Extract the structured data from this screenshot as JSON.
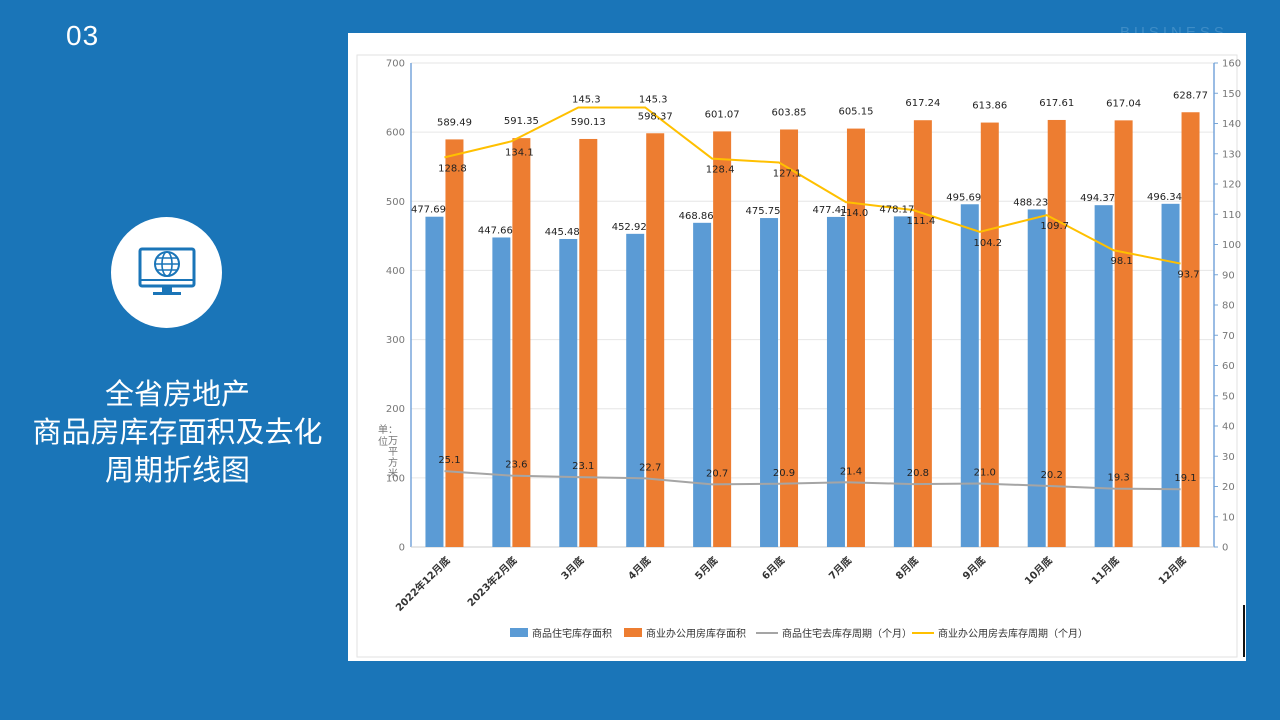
{
  "slide": {
    "number": "03",
    "watermark": "BUSINESS"
  },
  "title": {
    "line1": "全省房地产",
    "line2": "商品房库存面积及去化",
    "line3": "周期折线图"
  },
  "icon": "globe-monitor-icon",
  "colors": {
    "background": "#1a75b8",
    "residential_bar": "#5b9bd5",
    "office_bar": "#ed7d31",
    "residential_line": "#a5a5a5",
    "office_line": "#ffc000"
  },
  "chart_data": {
    "type": "bar+line",
    "categories": [
      "2022年12月底",
      "2023年2月底",
      "3月底",
      "4月底",
      "5月底",
      "6月底",
      "7月底",
      "8月底",
      "9月底",
      "10月底",
      "11月底",
      "12月底"
    ],
    "series": [
      {
        "name": "商品住宅库存面积",
        "type": "bar",
        "axis": "left",
        "values": [
          477.69,
          447.66,
          445.48,
          452.92,
          468.86,
          475.75,
          477.41,
          478.17,
          495.69,
          488.23,
          494.37,
          496.34
        ]
      },
      {
        "name": "商业办公用房库存面积",
        "type": "bar",
        "axis": "left",
        "values": [
          589.49,
          591.35,
          590.13,
          598.37,
          601.07,
          603.85,
          605.15,
          617.24,
          613.86,
          617.61,
          617.04,
          628.77
        ]
      },
      {
        "name": "商品住宅去库存周期（个月）",
        "type": "line",
        "axis": "right",
        "values": [
          25.1,
          23.6,
          23.1,
          22.7,
          20.7,
          20.9,
          21.4,
          20.8,
          21.0,
          20.2,
          19.3,
          19.1
        ]
      },
      {
        "name": "商业办公用房去库存周期（个月）",
        "type": "line",
        "axis": "right",
        "values": [
          128.8,
          134.1,
          145.3,
          145.3,
          128.4,
          127.1,
          114.0,
          111.4,
          104.2,
          109.7,
          98.1,
          93.7
        ]
      }
    ],
    "value_labels": {
      "residential_bar": [
        "477.69",
        "447.66",
        "445.48",
        "452.92",
        "468.86",
        "475.75",
        "477.41",
        "478.17",
        "495.69",
        "488.23",
        "494.37",
        "496.34"
      ],
      "office_bar": [
        "589.49",
        "591.35",
        "590.13",
        "598.37",
        "601.07",
        "603.85",
        "605.15",
        "617.24",
        "613.86",
        "617.61",
        "617.04",
        "628.77"
      ],
      "residential_line": [
        "25.1",
        "23.6",
        "23.1",
        "22.7",
        "20.7",
        "20.9",
        "21.4",
        "20.8",
        "21.0",
        "20.2",
        "19.3",
        "19.1"
      ],
      "office_line": [
        "128.8",
        "134.1",
        "145.3",
        "145.3",
        "128.4",
        "127.1",
        "114.0",
        "111.4",
        "104.2",
        "109.7",
        "98.1",
        "93.7"
      ]
    },
    "y_left": {
      "min": 0,
      "max": 700,
      "step": 100,
      "ticks": [
        "0",
        "100",
        "200",
        "300",
        "400",
        "500",
        "600",
        "700"
      ]
    },
    "y_right": {
      "min": 0,
      "max": 160,
      "step": 10,
      "ticks": [
        "0",
        "10",
        "20",
        "30",
        "40",
        "50",
        "60",
        "70",
        "80",
        "90",
        "100",
        "110",
        "120",
        "130",
        "140",
        "150",
        "160"
      ]
    },
    "ylabel_left": "单位：万平方米",
    "legend_position": "bottom",
    "grid": true
  }
}
